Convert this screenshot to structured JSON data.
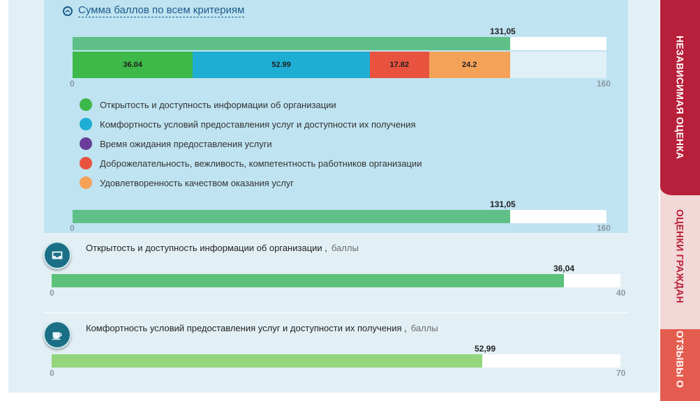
{
  "section": {
    "title": "Сумма баллов по всем критериям"
  },
  "total": {
    "value_label": "131,05",
    "value": 131.05,
    "max": 160,
    "axis_min": "0",
    "axis_max": "160"
  },
  "segments": [
    {
      "label": "36.04",
      "value": 36.04,
      "color": "#3db849"
    },
    {
      "label": "52.99",
      "value": 52.99,
      "color": "#1eaed4"
    },
    {
      "label": "17.82",
      "value": 17.82,
      "color": "#e8533f"
    },
    {
      "label": "24.2",
      "value": 24.2,
      "color": "#f5a259"
    }
  ],
  "legend": [
    {
      "label": "Открытость и доступность информации об организации",
      "color": "#3db849"
    },
    {
      "label": "Комфортность условий предоставления услуг и доступности их получения",
      "color": "#1eaed4"
    },
    {
      "label": "Время ожидания предоставления услуги",
      "color": "#6a3d9a"
    },
    {
      "label": "Доброжелательность, вежливость, компетентность работников организации",
      "color": "#e8533f"
    },
    {
      "label": "Удовлетворенность качеством оказания услуг",
      "color": "#f5a259"
    }
  ],
  "criteria": [
    {
      "title": "Открытость и доступность информации об организации ,",
      "unit": "баллы",
      "icon": "inbox-tray-icon",
      "value_label": "36,04",
      "value": 36.04,
      "max": 40,
      "axis_min": "0",
      "axis_max": "40",
      "color": "#5cc279"
    },
    {
      "title": "Комфортность условий предоставления услуг и доступности их получения ,",
      "unit": "баллы",
      "icon": "coffee-cup-icon",
      "value_label": "52,99",
      "value": 52.99,
      "max": 70,
      "axis_min": "0",
      "axis_max": "70",
      "color": "#93d67d"
    }
  ],
  "tabs": [
    {
      "label": "НЕЗАВИСИМАЯ ОЦЕНКА",
      "color": "#b81f3a",
      "text_color": "#ffffff"
    },
    {
      "label": "ОЦЕНКИ ГРАЖДАН",
      "color": "#f2d8d6",
      "text_color": "#b81f3a"
    },
    {
      "label": "ОТЗЫВЫ О",
      "color": "#e45c4f",
      "text_color": "#ffffff"
    }
  ],
  "colors": {
    "total_bar": "#5fc087",
    "panel": "#bfe3f1",
    "page": "#e2f0f5"
  }
}
